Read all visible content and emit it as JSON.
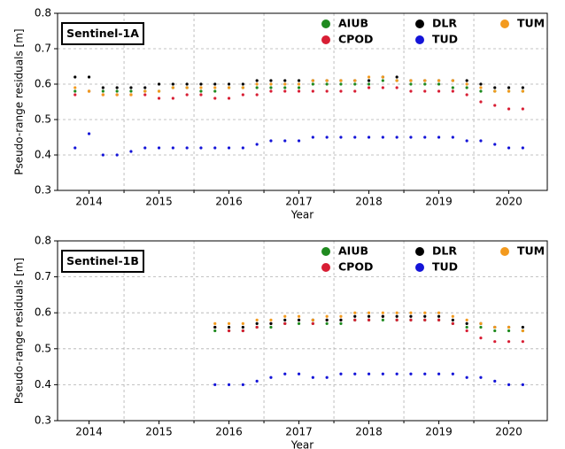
{
  "chart_data": [
    {
      "type": "scatter",
      "label": "Sentinel-1A",
      "ylabel": "Pseudo-range residuals [m]",
      "xlabel": "Year",
      "xlim": [
        2014.05,
        2021.05
      ],
      "ylim": [
        0.3,
        0.8
      ],
      "xticks": [
        {
          "value": 2014.5,
          "label": "2014"
        },
        {
          "value": 2015.5,
          "label": "2015"
        },
        {
          "value": 2016.5,
          "label": "2016"
        },
        {
          "value": 2017.5,
          "label": "2017"
        },
        {
          "value": 2018.5,
          "label": "2018"
        },
        {
          "value": 2019.5,
          "label": "2019"
        },
        {
          "value": 2020.5,
          "label": "2020"
        }
      ],
      "x_minor_ticks": [
        2015,
        2016,
        2017,
        2018,
        2019,
        2020
      ],
      "yticks": [
        0.3,
        0.4,
        0.5,
        0.6,
        0.7,
        0.8
      ],
      "grid": true,
      "x": [
        2014.3,
        2014.5,
        2014.7,
        2014.9,
        2015.1,
        2015.3,
        2015.5,
        2015.7,
        2015.9,
        2016.1,
        2016.3,
        2016.5,
        2016.7,
        2016.9,
        2017.1,
        2017.3,
        2017.5,
        2017.7,
        2017.9,
        2018.1,
        2018.3,
        2018.5,
        2018.7,
        2018.9,
        2019.1,
        2019.3,
        2019.5,
        2019.7,
        2019.9,
        2020.1,
        2020.3,
        2020.5,
        2020.7
      ],
      "series": [
        {
          "name": "AIUB",
          "color": "#1f8a1f",
          "values": [
            0.58,
            0.58,
            0.58,
            0.58,
            0.58,
            0.58,
            0.58,
            0.59,
            0.59,
            0.58,
            0.58,
            0.59,
            0.59,
            0.59,
            0.59,
            0.59,
            0.59,
            0.6,
            0.6,
            0.6,
            0.6,
            0.6,
            0.61,
            0.61,
            0.6,
            0.6,
            0.6,
            0.59,
            0.59,
            0.58,
            0.58,
            0.58,
            0.58
          ]
        },
        {
          "name": "CPOD",
          "color": "#d81e34",
          "values": [
            0.57,
            0.58,
            0.57,
            0.57,
            0.57,
            0.57,
            0.56,
            0.56,
            0.57,
            0.57,
            0.56,
            0.56,
            0.57,
            0.57,
            0.58,
            0.58,
            0.58,
            0.58,
            0.58,
            0.58,
            0.58,
            0.59,
            0.59,
            0.59,
            0.58,
            0.58,
            0.58,
            0.58,
            0.57,
            0.55,
            0.54,
            0.53,
            0.53
          ]
        },
        {
          "name": "DLR",
          "color": "#000000",
          "values": [
            0.62,
            0.62,
            0.59,
            0.59,
            0.59,
            0.59,
            0.6,
            0.6,
            0.6,
            0.6,
            0.6,
            0.6,
            0.6,
            0.61,
            0.61,
            0.61,
            0.61,
            0.61,
            0.61,
            0.61,
            0.61,
            0.61,
            0.62,
            0.62,
            0.61,
            0.61,
            0.61,
            0.61,
            0.61,
            0.6,
            0.59,
            0.59,
            0.59
          ]
        },
        {
          "name": "TUD",
          "color": "#1414d8",
          "values": [
            0.42,
            0.46,
            0.4,
            0.4,
            0.41,
            0.42,
            0.42,
            0.42,
            0.42,
            0.42,
            0.42,
            0.42,
            0.42,
            0.43,
            0.44,
            0.44,
            0.44,
            0.45,
            0.45,
            0.45,
            0.45,
            0.45,
            0.45,
            0.45,
            0.45,
            0.45,
            0.45,
            0.45,
            0.44,
            0.44,
            0.43,
            0.42,
            0.42
          ]
        },
        {
          "name": "TUM",
          "color": "#f39a1e",
          "values": [
            0.59,
            0.58,
            0.57,
            0.57,
            0.57,
            0.58,
            0.58,
            0.59,
            0.59,
            0.59,
            0.59,
            0.59,
            0.59,
            0.6,
            0.6,
            0.6,
            0.6,
            0.61,
            0.61,
            0.61,
            0.61,
            0.62,
            0.62,
            0.61,
            0.61,
            0.61,
            0.61,
            0.61,
            0.6,
            0.59,
            0.58,
            0.58,
            0.58
          ]
        }
      ]
    },
    {
      "type": "scatter",
      "label": "Sentinel-1B",
      "ylabel": "Pseudo-range residuals [m]",
      "xlabel": "Year",
      "xlim": [
        2014.05,
        2021.05
      ],
      "ylim": [
        0.3,
        0.8
      ],
      "xticks": [
        {
          "value": 2014.5,
          "label": "2014"
        },
        {
          "value": 2015.5,
          "label": "2015"
        },
        {
          "value": 2016.5,
          "label": "2016"
        },
        {
          "value": 2017.5,
          "label": "2017"
        },
        {
          "value": 2018.5,
          "label": "2018"
        },
        {
          "value": 2019.5,
          "label": "2019"
        },
        {
          "value": 2020.5,
          "label": "2020"
        }
      ],
      "x_minor_ticks": [
        2015,
        2016,
        2017,
        2018,
        2019,
        2020
      ],
      "yticks": [
        0.3,
        0.4,
        0.5,
        0.6,
        0.7,
        0.8
      ],
      "grid": true,
      "x": [
        2016.3,
        2016.5,
        2016.7,
        2016.9,
        2017.1,
        2017.3,
        2017.5,
        2017.7,
        2017.9,
        2018.1,
        2018.3,
        2018.5,
        2018.7,
        2018.9,
        2019.1,
        2019.3,
        2019.5,
        2019.7,
        2019.9,
        2020.1,
        2020.3,
        2020.5,
        2020.7
      ],
      "series": [
        {
          "name": "AIUB",
          "color": "#1f8a1f",
          "values": [
            0.55,
            0.55,
            0.55,
            0.56,
            0.56,
            0.57,
            0.57,
            0.57,
            0.57,
            0.57,
            0.58,
            0.58,
            0.58,
            0.58,
            0.58,
            0.58,
            0.58,
            0.57,
            0.56,
            0.56,
            0.55,
            0.55,
            0.55
          ]
        },
        {
          "name": "CPOD",
          "color": "#d81e34",
          "values": [
            0.56,
            0.55,
            0.55,
            0.56,
            0.57,
            0.57,
            0.58,
            0.57,
            0.58,
            0.58,
            0.58,
            0.58,
            0.59,
            0.58,
            0.58,
            0.58,
            0.58,
            0.57,
            0.55,
            0.53,
            0.52,
            0.52,
            0.52
          ]
        },
        {
          "name": "DLR",
          "color": "#000000",
          "values": [
            0.56,
            0.56,
            0.56,
            0.57,
            0.57,
            0.58,
            0.58,
            0.58,
            0.58,
            0.58,
            0.59,
            0.59,
            0.59,
            0.59,
            0.59,
            0.59,
            0.59,
            0.58,
            0.57,
            0.57,
            0.56,
            0.56,
            0.56
          ]
        },
        {
          "name": "TUD",
          "color": "#1414d8",
          "values": [
            0.4,
            0.4,
            0.4,
            0.41,
            0.42,
            0.43,
            0.43,
            0.42,
            0.42,
            0.43,
            0.43,
            0.43,
            0.43,
            0.43,
            0.43,
            0.43,
            0.43,
            0.43,
            0.42,
            0.42,
            0.41,
            0.4,
            0.4
          ]
        },
        {
          "name": "TUM",
          "color": "#f39a1e",
          "values": [
            0.57,
            0.57,
            0.57,
            0.58,
            0.58,
            0.59,
            0.59,
            0.58,
            0.59,
            0.59,
            0.6,
            0.6,
            0.6,
            0.6,
            0.6,
            0.6,
            0.6,
            0.59,
            0.58,
            0.57,
            0.56,
            0.56,
            0.55
          ]
        }
      ]
    }
  ]
}
